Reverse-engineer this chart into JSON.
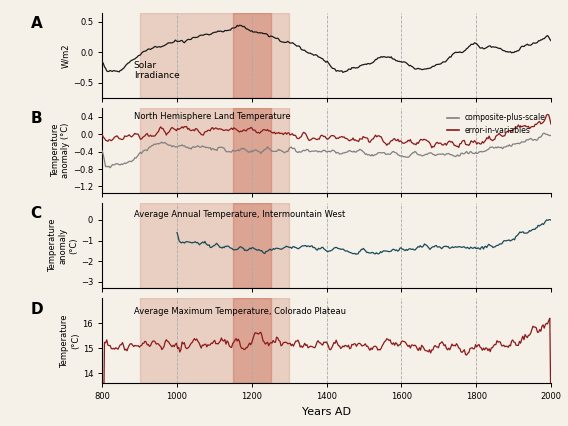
{
  "x_range": [
    800,
    2000
  ],
  "x_ticks": [
    800,
    1000,
    1200,
    1400,
    1600,
    1800,
    2000
  ],
  "xlabel": "Years AD",
  "panel_labels": [
    "A",
    "B",
    "C",
    "D"
  ],
  "shading_light": [
    900,
    1300
  ],
  "shading_dark": [
    1150,
    1250
  ],
  "panel_A": {
    "ylabel": "W/m2",
    "ylim": [
      -0.75,
      0.65
    ],
    "yticks": [
      -0.5,
      0,
      0.5
    ],
    "label": "Solar\nIrradiance",
    "color": "#1a1a1a"
  },
  "panel_B": {
    "ylabel": "Temperature\nanomaly (°C)",
    "ylim": [
      -1.35,
      0.6
    ],
    "yticks": [
      -1.2,
      -0.8,
      -0.4,
      0,
      0.4
    ],
    "label": "North Hemisphere Land Temperature",
    "color_composite": "#808080",
    "color_error": "#8b1a1a",
    "legend_labels": [
      "composite-plus-scale",
      "error-in-variables"
    ]
  },
  "panel_C": {
    "ylabel": "Temperature\nanomaly\n(°C)",
    "ylim": [
      -3.3,
      0.8
    ],
    "yticks": [
      -3,
      -2,
      -1,
      0
    ],
    "label": "Average Annual Temperature, Intermountain West",
    "color": "#1a4a5a"
  },
  "panel_D": {
    "ylabel": "Temperature\n(°C)",
    "ylim": [
      13.6,
      17.0
    ],
    "yticks": [
      14,
      15,
      16
    ],
    "label": "Average Maximum Temperature, Colorado Plateau",
    "color": "#8b1a1a"
  },
  "bg_color": "#f5f0e8"
}
